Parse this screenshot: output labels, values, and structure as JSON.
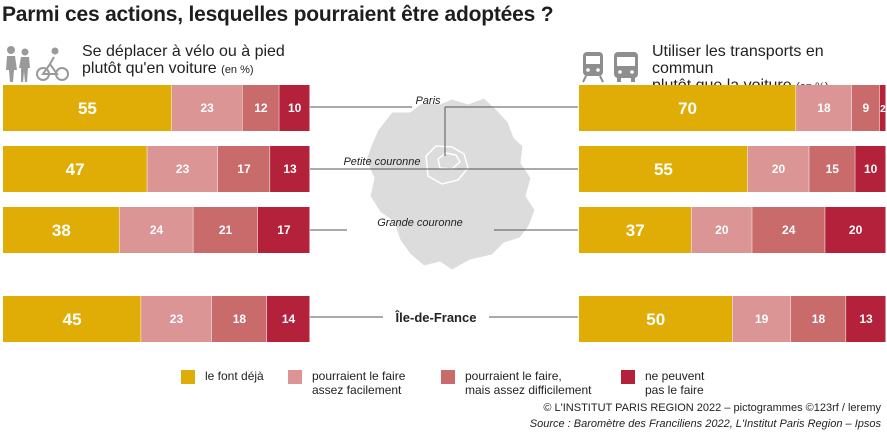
{
  "title": "Parmi ces actions, lesquelles pourraient être adoptées ?",
  "left_header": {
    "line1": "Se déplacer à vélo ou à pied",
    "line2": "plutôt qu'en voiture",
    "unit": "(en %)"
  },
  "right_header": {
    "line1": "Utiliser les transports en commun",
    "line2": "plutôt que la voiture",
    "unit": "(en %)"
  },
  "colors": {
    "deja": "#e0ad07",
    "facile": "#db9595",
    "difficile": "#c96b6b",
    "non": "#b3213a",
    "map": "#dcdcdc"
  },
  "chart_data": [
    {
      "type": "bar",
      "orientation": "horizontal",
      "stacked": true,
      "title": "Se déplacer à vélo ou à pied plutôt qu'en voiture (en %)",
      "categories": [
        "Paris",
        "Petite couronne",
        "Grande couronne",
        "Île-de-France"
      ],
      "series": [
        {
          "name": "le font déjà",
          "values": [
            55,
            47,
            38,
            45
          ]
        },
        {
          "name": "pourraient le faire assez facilement",
          "values": [
            23,
            23,
            24,
            23
          ]
        },
        {
          "name": "pourraient le faire, mais assez difficilement",
          "values": [
            12,
            17,
            21,
            18
          ]
        },
        {
          "name": "ne peuvent pas le faire",
          "values": [
            10,
            13,
            17,
            14
          ]
        }
      ]
    },
    {
      "type": "bar",
      "orientation": "horizontal",
      "stacked": true,
      "title": "Utiliser les transports en commun plutôt que la voiture (en %)",
      "categories": [
        "Paris",
        "Petite couronne",
        "Grande couronne",
        "Île-de-France"
      ],
      "series": [
        {
          "name": "le font déjà",
          "values": [
            70,
            55,
            37,
            50
          ]
        },
        {
          "name": "pourraient le faire assez facilement",
          "values": [
            18,
            20,
            20,
            19
          ]
        },
        {
          "name": "pourraient le faire, mais assez difficilement",
          "values": [
            9,
            15,
            24,
            18
          ]
        },
        {
          "name": "ne peuvent pas le faire",
          "values": [
            2,
            10,
            20,
            13
          ]
        }
      ]
    }
  ],
  "legend": [
    {
      "line1": "le font déjà",
      "line2": ""
    },
    {
      "line1": "pourraient le faire",
      "line2": "assez facilement"
    },
    {
      "line1": "pourraient le faire,",
      "line2": "mais assez difficilement"
    },
    {
      "line1": "ne peuvent",
      "line2": "pas le faire"
    }
  ],
  "icons": [
    "pedestrians-icon",
    "cyclist-icon",
    "train-icon",
    "bus-icon"
  ],
  "credit": "© L'INSTITUT PARIS REGION 2022 – pictogrammes ©123rf / leremy",
  "source": "Source : Baromètre des Franciliens 2022, L'Institut Paris Region – Ipsos"
}
